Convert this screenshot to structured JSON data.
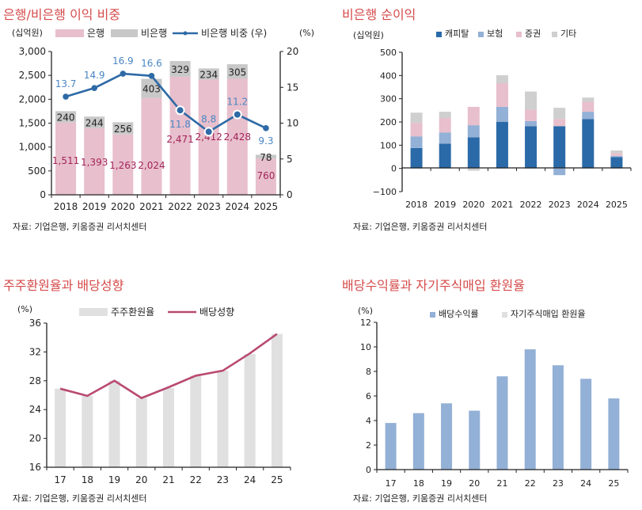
{
  "chart_data": [
    {
      "type": "bar+line",
      "title": "은행/비은행 이익 비중",
      "unit_left": "(십억원)",
      "unit_right": "(%)",
      "categories": [
        "2018",
        "2019",
        "2020",
        "2021",
        "2022",
        "2023",
        "2024",
        "2025"
      ],
      "ylim": [
        0,
        3000
      ],
      "yticks": [
        "0",
        "500",
        "1,000",
        "1,500",
        "2,000",
        "2,500",
        "3,000"
      ],
      "y2lim": [
        0,
        20
      ],
      "y2ticks": [
        "0",
        "5",
        "10",
        "15",
        "20"
      ],
      "series": [
        {
          "name": "은행",
          "kind": "stacked-bar",
          "color": "#e8bfcc",
          "label_color": "#a3245a",
          "values": [
            1511,
            1393,
            1263,
            2024,
            2471,
            2412,
            2428,
            760
          ],
          "labels": [
            "1,511",
            "1,393",
            "1,263",
            "2,024",
            "2,471",
            "2,412",
            "2,428",
            "760"
          ]
        },
        {
          "name": "비은행",
          "kind": "stacked-bar",
          "color": "#c8c8c8",
          "label_color": "#222222",
          "values": [
            240,
            244,
            256,
            403,
            329,
            234,
            305,
            78
          ],
          "labels": [
            "240",
            "244",
            "256",
            "403",
            "329",
            "234",
            "305",
            "78"
          ]
        },
        {
          "name": "비은행 비중 (우)",
          "kind": "line",
          "axis": "right",
          "color": "#2e6aa6",
          "label_color": "#4a86c4",
          "values": [
            13.7,
            14.9,
            16.9,
            16.6,
            11.8,
            8.8,
            11.2,
            9.3
          ],
          "labels": [
            "13.7",
            "14.9",
            "16.9",
            "16.6",
            "11.8",
            "8.8",
            "11.2",
            "9.3"
          ]
        }
      ],
      "legend": "top",
      "source": "자료: 기업은행, 키움증권 리서치센터"
    },
    {
      "type": "stacked-bar",
      "title": "비은행 순이익",
      "unit_left": "(십억원)",
      "categories": [
        "2018",
        "2019",
        "2020",
        "2021",
        "2022",
        "2023",
        "2024",
        "2025"
      ],
      "ylim": [
        -100,
        500
      ],
      "yticks": [
        "−100",
        "0",
        "100",
        "200",
        "300",
        "400",
        "500"
      ],
      "series": [
        {
          "name": "캐피탈",
          "color": "#2b6aa8",
          "values": [
            88,
            107,
            134,
            200,
            182,
            182,
            212,
            49
          ]
        },
        {
          "name": "보험",
          "color": "#93b0d6",
          "values": [
            50,
            48,
            52,
            65,
            22,
            -29,
            32,
            5
          ]
        },
        {
          "name": "증권",
          "color": "#e8bfcc",
          "values": [
            58,
            62,
            79,
            102,
            49,
            31,
            43,
            12
          ]
        },
        {
          "name": "기타",
          "color": "#cfcfcf",
          "values": [
            44,
            27,
            -10,
            34,
            78,
            48,
            18,
            11
          ]
        }
      ],
      "legend": "top",
      "source": "자료: 기업은행, 키움증권 리서치센터"
    },
    {
      "type": "bar+line",
      "title": "주주환원율과 배당성향",
      "unit_left": "(%)",
      "categories": [
        "17",
        "18",
        "19",
        "20",
        "21",
        "22",
        "23",
        "24",
        "25"
      ],
      "ylim": [
        16,
        36
      ],
      "yticks": [
        "16",
        "20",
        "24",
        "28",
        "32",
        "36"
      ],
      "series": [
        {
          "name": "주주환원율",
          "kind": "bar",
          "color": "#e0e0e0",
          "values": [
            26.9,
            25.9,
            28.0,
            25.6,
            27.0,
            28.7,
            29.4,
            31.7,
            34.5
          ]
        },
        {
          "name": "배당성향",
          "kind": "line",
          "color": "#b94a72",
          "values": [
            26.9,
            25.9,
            28.0,
            25.6,
            27.1,
            28.7,
            29.4,
            31.8,
            34.5
          ]
        }
      ],
      "legend": "top",
      "source": "자료: 기업은행, 키움증권 리서치센터"
    },
    {
      "type": "stacked-bar",
      "title": "배당수익률과 자기주식매입 환원율",
      "unit_left": "(%)",
      "categories": [
        "17",
        "18",
        "19",
        "20",
        "21",
        "22",
        "23",
        "24",
        "25"
      ],
      "ylim": [
        0,
        12
      ],
      "yticks": [
        "0",
        "2",
        "4",
        "6",
        "8",
        "10",
        "12"
      ],
      "series": [
        {
          "name": "배당수익률",
          "color": "#93b0d6",
          "values": [
            3.8,
            4.6,
            5.4,
            4.8,
            7.6,
            9.8,
            8.5,
            7.4,
            5.8
          ]
        },
        {
          "name": "자기주식매입  환원율",
          "color": "#e0e0e0",
          "values": [
            0,
            0,
            0,
            0,
            0,
            0,
            0,
            0,
            0
          ]
        }
      ],
      "legend": "top",
      "source": "자료: 기업은행, 키움증권 리서치센터"
    }
  ]
}
